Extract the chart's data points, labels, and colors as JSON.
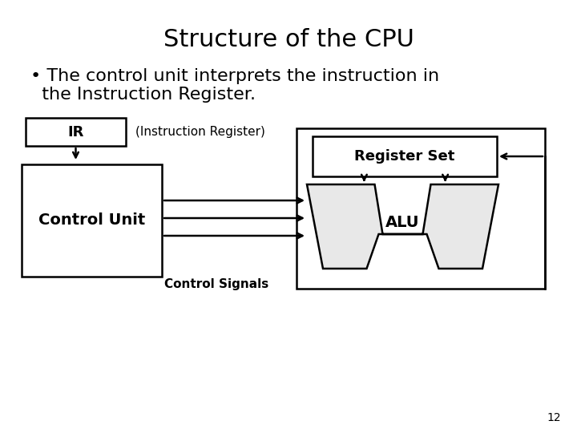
{
  "title": "Structure of the CPU",
  "bullet_line1": "• The control unit interprets the instruction in",
  "bullet_line2": "  the Instruction Register.",
  "background_color": "#ffffff",
  "line_color": "#000000",
  "title_fontsize": 22,
  "bullet_fontsize": 16,
  "page_number": "12"
}
